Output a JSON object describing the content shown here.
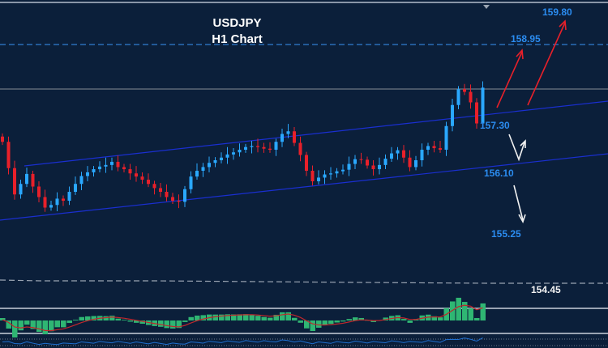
{
  "chart_data": {
    "type": "candlestick",
    "title": "USDJPY",
    "subtitle": "H1 Chart",
    "price_range": [
      154.2,
      160.0
    ],
    "closes": [
      157.1,
      156.6,
      156.1,
      156.3,
      156.49,
      156.25,
      156.05,
      155.85,
      155.9,
      156.02,
      155.98,
      156.15,
      156.3,
      156.45,
      156.52,
      156.58,
      156.63,
      156.66,
      156.72,
      156.62,
      156.58,
      156.5,
      156.44,
      156.38,
      156.3,
      156.22,
      156.15,
      156.05,
      155.98,
      155.96,
      156.2,
      156.44,
      156.55,
      156.62,
      156.7,
      156.75,
      156.8,
      156.86,
      156.9,
      156.95,
      157.0,
      157.02,
      157.0,
      156.97,
      156.95,
      157.1,
      157.25,
      157.3,
      157.08,
      156.85,
      156.55,
      156.35,
      156.42,
      156.48,
      156.5,
      156.54,
      156.57,
      156.68,
      156.77,
      156.76,
      156.65,
      156.58,
      156.66,
      156.78,
      156.88,
      156.94,
      156.8,
      156.62,
      156.75,
      156.95,
      157.02,
      156.98,
      156.95,
      157.4,
      157.8,
      158.1,
      158.05,
      157.85,
      157.45,
      158.13
    ],
    "current_price": 158.1,
    "levels": [
      {
        "value": "159.80",
        "price": 159.8,
        "color": "#2b8cf0"
      },
      {
        "value": "158.95",
        "price": 158.95,
        "color": "#2b8cf0"
      },
      {
        "value": "157.30",
        "price": 157.3,
        "color": "#2b8cf0"
      },
      {
        "value": "156.10",
        "price": 156.1,
        "color": "#2b8cf0"
      },
      {
        "value": "155.25",
        "price": 155.25,
        "color": "#2b8cf0"
      },
      {
        "value": "154.45",
        "price": 154.45,
        "color": "#f2f2f2"
      }
    ],
    "colors": {
      "up": "#2aa8ff",
      "down": "#e8202a",
      "background": "#0b1f3a",
      "channel": "#1a2fd0",
      "histogram": "#2fb673",
      "signal": "#c0282c"
    }
  }
}
